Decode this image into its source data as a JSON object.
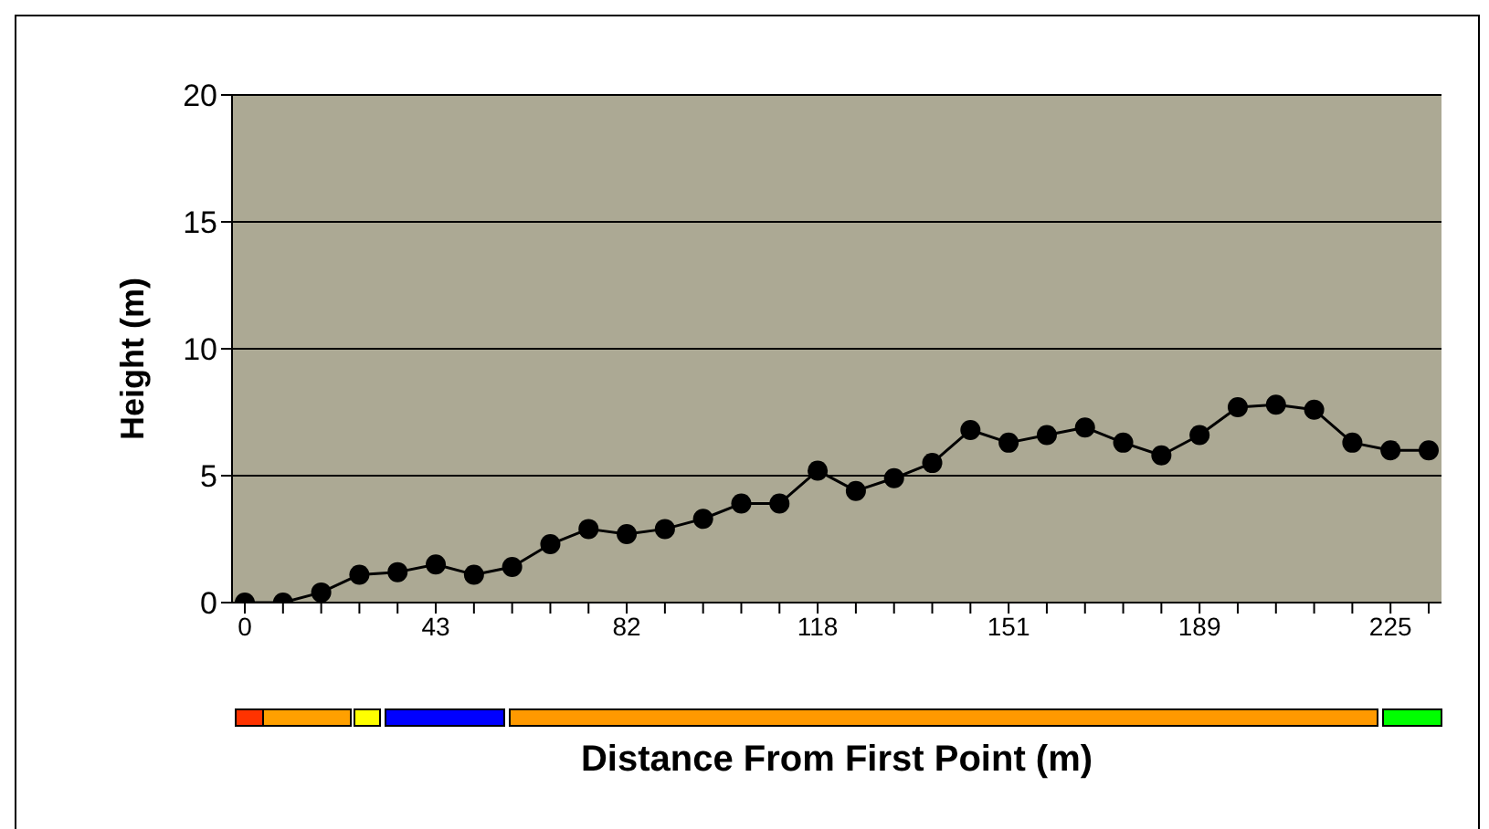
{
  "chart_data": {
    "type": "line",
    "xlabel": "Distance From First Point (m)",
    "ylabel": "Height (m)",
    "categories": [
      "0",
      null,
      null,
      null,
      null,
      "43",
      null,
      null,
      null,
      null,
      "82",
      null,
      null,
      null,
      null,
      "118",
      null,
      null,
      null,
      null,
      "151",
      null,
      null,
      null,
      null,
      "189",
      null,
      null,
      null,
      null,
      "225",
      null
    ],
    "series": [
      {
        "color": "#000000",
        "values": [
          0,
          0,
          0.4,
          1.1,
          1.2,
          1.5,
          1.1,
          1.4,
          2.3,
          2.9,
          2.7,
          2.9,
          3.3,
          3.9,
          3.9,
          5.2,
          4.4,
          4.9,
          5.5,
          6.8,
          6.3,
          6.6,
          6.9,
          6.3,
          5.8,
          6.6,
          7.7,
          7.8,
          7.6,
          6.3,
          6.0,
          6.0
        ]
      }
    ],
    "ylim": [
      0,
      20
    ],
    "yticks": [
      0,
      5,
      10,
      15,
      20
    ],
    "grid": "y",
    "marker": "circle",
    "line_style": "solid"
  }
}
